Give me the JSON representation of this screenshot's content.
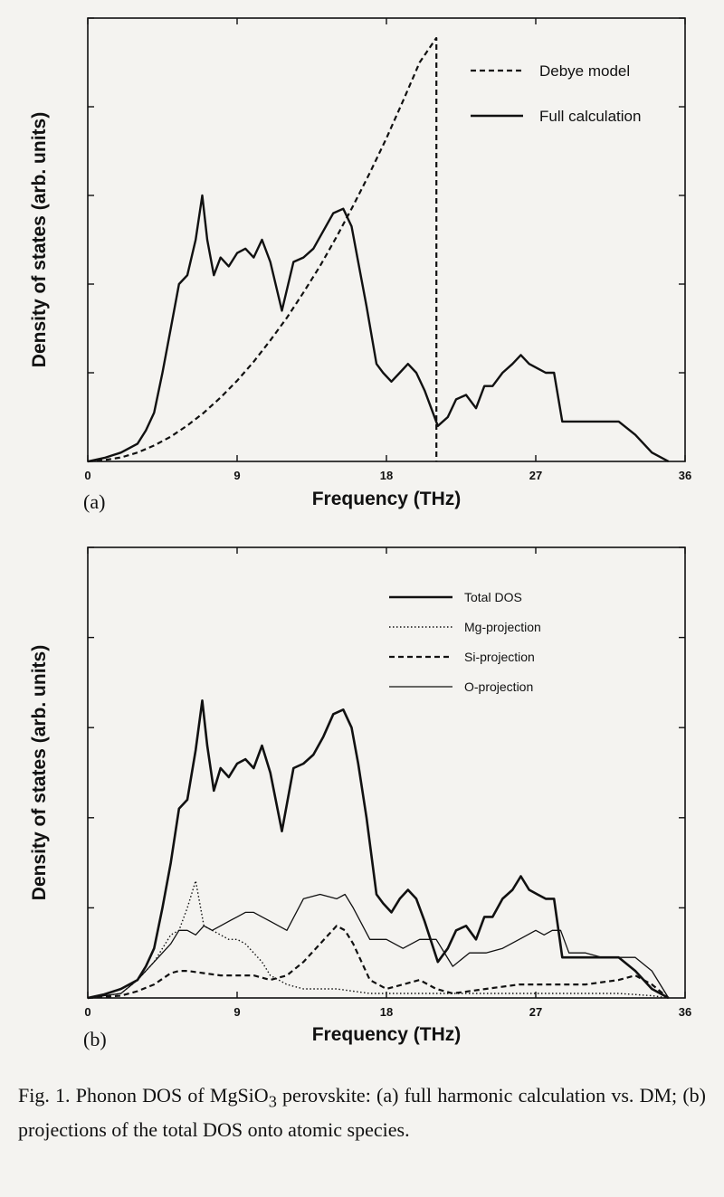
{
  "chart_data": [
    {
      "type": "line",
      "panel_label": "(a)",
      "xlabel": "Frequency (THz)",
      "ylabel": "Density of states (arb. units)",
      "xlim": [
        0,
        36
      ],
      "ylim": [
        0,
        1.0
      ],
      "xticks": [
        "0",
        "9",
        "18",
        "27",
        "36"
      ],
      "yticks_count": 5,
      "legend_position": "top-right",
      "series": [
        {
          "name": "Debye model",
          "style": "dashed",
          "x": [
            0,
            1,
            2,
            3,
            4,
            5,
            6,
            7,
            8,
            9,
            10,
            11,
            12,
            13,
            14,
            15,
            16,
            17,
            18,
            19,
            20,
            21,
            21.01,
            21.01
          ],
          "y": [
            0,
            0.003,
            0.009,
            0.02,
            0.036,
            0.056,
            0.081,
            0.11,
            0.144,
            0.182,
            0.225,
            0.273,
            0.324,
            0.381,
            0.441,
            0.507,
            0.577,
            0.651,
            0.729,
            0.813,
            0.9,
            0.955,
            0.955,
            0
          ]
        },
        {
          "name": "Full calculation",
          "style": "solid",
          "x": [
            0,
            1,
            2,
            3,
            3.5,
            4,
            4.5,
            5,
            5.5,
            6,
            6.5,
            6.9,
            7.2,
            7.6,
            8,
            8.5,
            9,
            9.5,
            10,
            10.5,
            11,
            11.7,
            12.4,
            13,
            13.6,
            14.2,
            14.8,
            15.4,
            15.9,
            16.3,
            16.8,
            17.4,
            17.8,
            18.3,
            18.8,
            19.3,
            19.8,
            20.3,
            21.1,
            21.7,
            22.2,
            22.8,
            23.4,
            23.9,
            24.4,
            25,
            25.6,
            26.1,
            26.6,
            27.1,
            27.6,
            28.1,
            28.6,
            29.3,
            30,
            31,
            32,
            33,
            34,
            35
          ],
          "y": [
            0,
            0.008,
            0.02,
            0.04,
            0.07,
            0.11,
            0.2,
            0.3,
            0.4,
            0.42,
            0.5,
            0.6,
            0.5,
            0.42,
            0.46,
            0.44,
            0.47,
            0.48,
            0.46,
            0.5,
            0.45,
            0.34,
            0.45,
            0.46,
            0.48,
            0.52,
            0.56,
            0.57,
            0.53,
            0.45,
            0.35,
            0.22,
            0.2,
            0.18,
            0.2,
            0.22,
            0.2,
            0.16,
            0.08,
            0.1,
            0.14,
            0.15,
            0.12,
            0.17,
            0.17,
            0.2,
            0.22,
            0.24,
            0.22,
            0.21,
            0.2,
            0.2,
            0.09,
            0.09,
            0.09,
            0.09,
            0.09,
            0.06,
            0.02,
            0.0
          ]
        }
      ]
    },
    {
      "type": "line",
      "panel_label": "(b)",
      "xlabel": "Frequency (THz)",
      "ylabel": "Density of states (arb. units)",
      "xlim": [
        0,
        36
      ],
      "ylim": [
        0,
        1.0
      ],
      "xticks": [
        "0",
        "9",
        "18",
        "27",
        "36"
      ],
      "yticks_count": 5,
      "legend_position": "top-right",
      "series": [
        {
          "name": "Total DOS",
          "style": "solid-thick",
          "x": [
            0,
            1,
            2,
            3,
            3.5,
            4,
            4.5,
            5,
            5.5,
            6,
            6.5,
            6.9,
            7.2,
            7.6,
            8,
            8.5,
            9,
            9.5,
            10,
            10.5,
            11,
            11.7,
            12.4,
            13,
            13.6,
            14.2,
            14.8,
            15.4,
            15.9,
            16.3,
            16.8,
            17.4,
            17.8,
            18.3,
            18.8,
            19.3,
            19.8,
            20.3,
            21.1,
            21.7,
            22.2,
            22.8,
            23.4,
            23.9,
            24.4,
            25,
            25.6,
            26.1,
            26.6,
            27.1,
            27.6,
            28.1,
            28.6,
            29.3,
            30,
            31,
            32,
            33,
            34,
            35
          ],
          "y": [
            0,
            0.008,
            0.02,
            0.04,
            0.07,
            0.11,
            0.2,
            0.3,
            0.42,
            0.44,
            0.55,
            0.66,
            0.56,
            0.46,
            0.51,
            0.49,
            0.52,
            0.53,
            0.51,
            0.56,
            0.5,
            0.37,
            0.51,
            0.52,
            0.54,
            0.58,
            0.63,
            0.64,
            0.6,
            0.52,
            0.4,
            0.23,
            0.21,
            0.19,
            0.22,
            0.24,
            0.22,
            0.17,
            0.08,
            0.11,
            0.15,
            0.16,
            0.13,
            0.18,
            0.18,
            0.22,
            0.24,
            0.27,
            0.24,
            0.23,
            0.22,
            0.22,
            0.09,
            0.09,
            0.09,
            0.09,
            0.09,
            0.06,
            0.02,
            0.0
          ]
        },
        {
          "name": "Mg-projection",
          "style": "dotted",
          "x": [
            0,
            2,
            3,
            4,
            5,
            5.5,
            6,
            6.5,
            7,
            7.5,
            8,
            8.5,
            9,
            9.5,
            10,
            10.5,
            11,
            12,
            13,
            14,
            15,
            16,
            17,
            18,
            20,
            22,
            24,
            26,
            28,
            30,
            32,
            34,
            35
          ],
          "y": [
            0,
            0.01,
            0.04,
            0.08,
            0.14,
            0.15,
            0.2,
            0.26,
            0.16,
            0.15,
            0.14,
            0.13,
            0.13,
            0.12,
            0.1,
            0.08,
            0.05,
            0.03,
            0.02,
            0.02,
            0.02,
            0.015,
            0.01,
            0.01,
            0.01,
            0.01,
            0.01,
            0.01,
            0.01,
            0.01,
            0.01,
            0.005,
            0
          ]
        },
        {
          "name": "Si-projection",
          "style": "dashed",
          "x": [
            0,
            2,
            3,
            4,
            5,
            5.5,
            6,
            7,
            8,
            9,
            10,
            11,
            12,
            13,
            14,
            14.5,
            15,
            15.5,
            16,
            16.5,
            17,
            18,
            19,
            20,
            21,
            22,
            24,
            26,
            27,
            28,
            30,
            32,
            33,
            34,
            35
          ],
          "y": [
            0,
            0.005,
            0.015,
            0.03,
            0.055,
            0.06,
            0.06,
            0.055,
            0.05,
            0.05,
            0.05,
            0.04,
            0.05,
            0.08,
            0.12,
            0.14,
            0.16,
            0.15,
            0.12,
            0.08,
            0.04,
            0.02,
            0.03,
            0.04,
            0.02,
            0.01,
            0.02,
            0.03,
            0.03,
            0.03,
            0.03,
            0.04,
            0.05,
            0.03,
            0
          ]
        },
        {
          "name": "O-projection",
          "style": "solid-thin",
          "x": [
            0,
            2,
            3,
            4,
            5,
            5.5,
            6,
            6.5,
            7,
            7.5,
            8,
            8.5,
            9,
            9.5,
            10,
            10.5,
            11,
            12,
            13,
            14,
            15,
            15.5,
            16,
            17,
            18,
            19,
            20,
            21,
            22,
            23,
            24,
            25,
            26,
            27,
            27.5,
            28,
            28.5,
            29,
            30,
            31,
            32,
            33,
            34,
            35
          ],
          "y": [
            0,
            0.01,
            0.04,
            0.08,
            0.12,
            0.15,
            0.15,
            0.14,
            0.16,
            0.15,
            0.16,
            0.17,
            0.18,
            0.19,
            0.19,
            0.18,
            0.17,
            0.15,
            0.22,
            0.23,
            0.22,
            0.23,
            0.2,
            0.13,
            0.13,
            0.11,
            0.13,
            0.13,
            0.07,
            0.1,
            0.1,
            0.11,
            0.13,
            0.15,
            0.14,
            0.15,
            0.15,
            0.1,
            0.1,
            0.09,
            0.09,
            0.09,
            0.06,
            0
          ]
        }
      ]
    }
  ],
  "caption": {
    "prefix": "Fig. 1. Phonon DOS of MgSiO",
    "subscript": "3",
    "suffix": " perovskite: (a) full harmonic calculation vs. DM; (b) projections of the total DOS onto atomic species."
  }
}
